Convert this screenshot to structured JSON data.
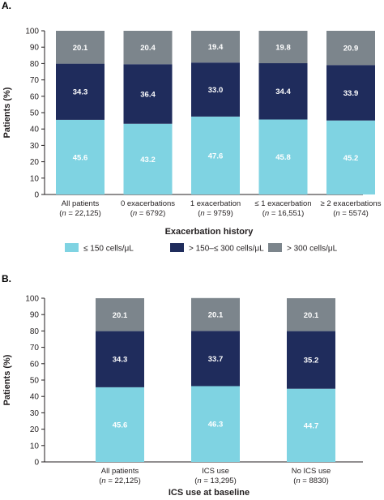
{
  "legend": [
    {
      "label": "≤ 150 cells/μL",
      "color": "#7fd3e2"
    },
    {
      "label": "> 150–≤ 300 cells/μL",
      "color": "#1f2c5c"
    },
    {
      "label": "> 300 cells/μL",
      "color": "#7c858c"
    }
  ],
  "chart_data": [
    {
      "panel": "A.",
      "type": "bar",
      "stacked": true,
      "ylabel": "Patients (%)",
      "xlabel": "Exacerbation history",
      "ylim": [
        0,
        100
      ],
      "yticks": [
        0,
        10,
        20,
        30,
        40,
        50,
        60,
        70,
        80,
        90,
        100
      ],
      "categories": [
        {
          "name": "All patients",
          "n_prefix": "n",
          "n_suffix": " = 22,125"
        },
        {
          "name": "0 exacerbations",
          "n_prefix": "n",
          "n_suffix": " = 6792"
        },
        {
          "name": "1 exacerbation",
          "n_prefix": "n",
          "n_suffix": " = 9759"
        },
        {
          "name": "≤ 1 exacerbation",
          "n_prefix": "n",
          "n_suffix": " = 16,551"
        },
        {
          "name": "≥ 2 exacerbations",
          "n_prefix": "n",
          "n_suffix": " = 5574"
        }
      ],
      "series": [
        {
          "name": "≤ 150 cells/μL",
          "values": [
            45.6,
            43.2,
            47.6,
            45.8,
            45.2
          ]
        },
        {
          "name": "> 150–≤ 300 cells/μL",
          "values": [
            34.3,
            36.4,
            33.0,
            34.4,
            33.9
          ]
        },
        {
          "name": "> 300 cells/μL",
          "values": [
            20.1,
            20.4,
            19.4,
            19.8,
            20.9
          ]
        }
      ],
      "value_labels": [
        [
          "45.6",
          "43.2",
          "47.6",
          "45.8",
          "45.2"
        ],
        [
          "34.3",
          "36.4",
          "33.0",
          "34.4",
          "33.9"
        ],
        [
          "20.1",
          "20.4",
          "19.4",
          "19.8",
          "20.9"
        ]
      ]
    },
    {
      "panel": "B.",
      "type": "bar",
      "stacked": true,
      "ylabel": "Patients (%)",
      "xlabel": "ICS use at baseline",
      "ylim": [
        0,
        100
      ],
      "yticks": [
        0,
        10,
        20,
        30,
        40,
        50,
        60,
        70,
        80,
        90,
        100
      ],
      "categories": [
        {
          "name": "All patients",
          "n_prefix": "n",
          "n_suffix": " = 22,125"
        },
        {
          "name": "ICS use",
          "n_prefix": "n",
          "n_suffix": " = 13,295"
        },
        {
          "name": "No ICS use",
          "n_prefix": "n",
          "n_suffix": " = 8830"
        }
      ],
      "series": [
        {
          "name": "≤ 150 cells/μL",
          "values": [
            45.6,
            46.3,
            44.7
          ]
        },
        {
          "name": "> 150–≤ 300 cells/μL",
          "values": [
            34.3,
            33.7,
            35.2
          ]
        },
        {
          "name": "> 300 cells/μL",
          "values": [
            20.1,
            20.1,
            20.1
          ]
        }
      ],
      "value_labels": [
        [
          "45.6",
          "46.3",
          "44.7"
        ],
        [
          "34.3",
          "33.7",
          "35.2"
        ],
        [
          "20.1",
          "20.1",
          "20.1"
        ]
      ]
    }
  ]
}
